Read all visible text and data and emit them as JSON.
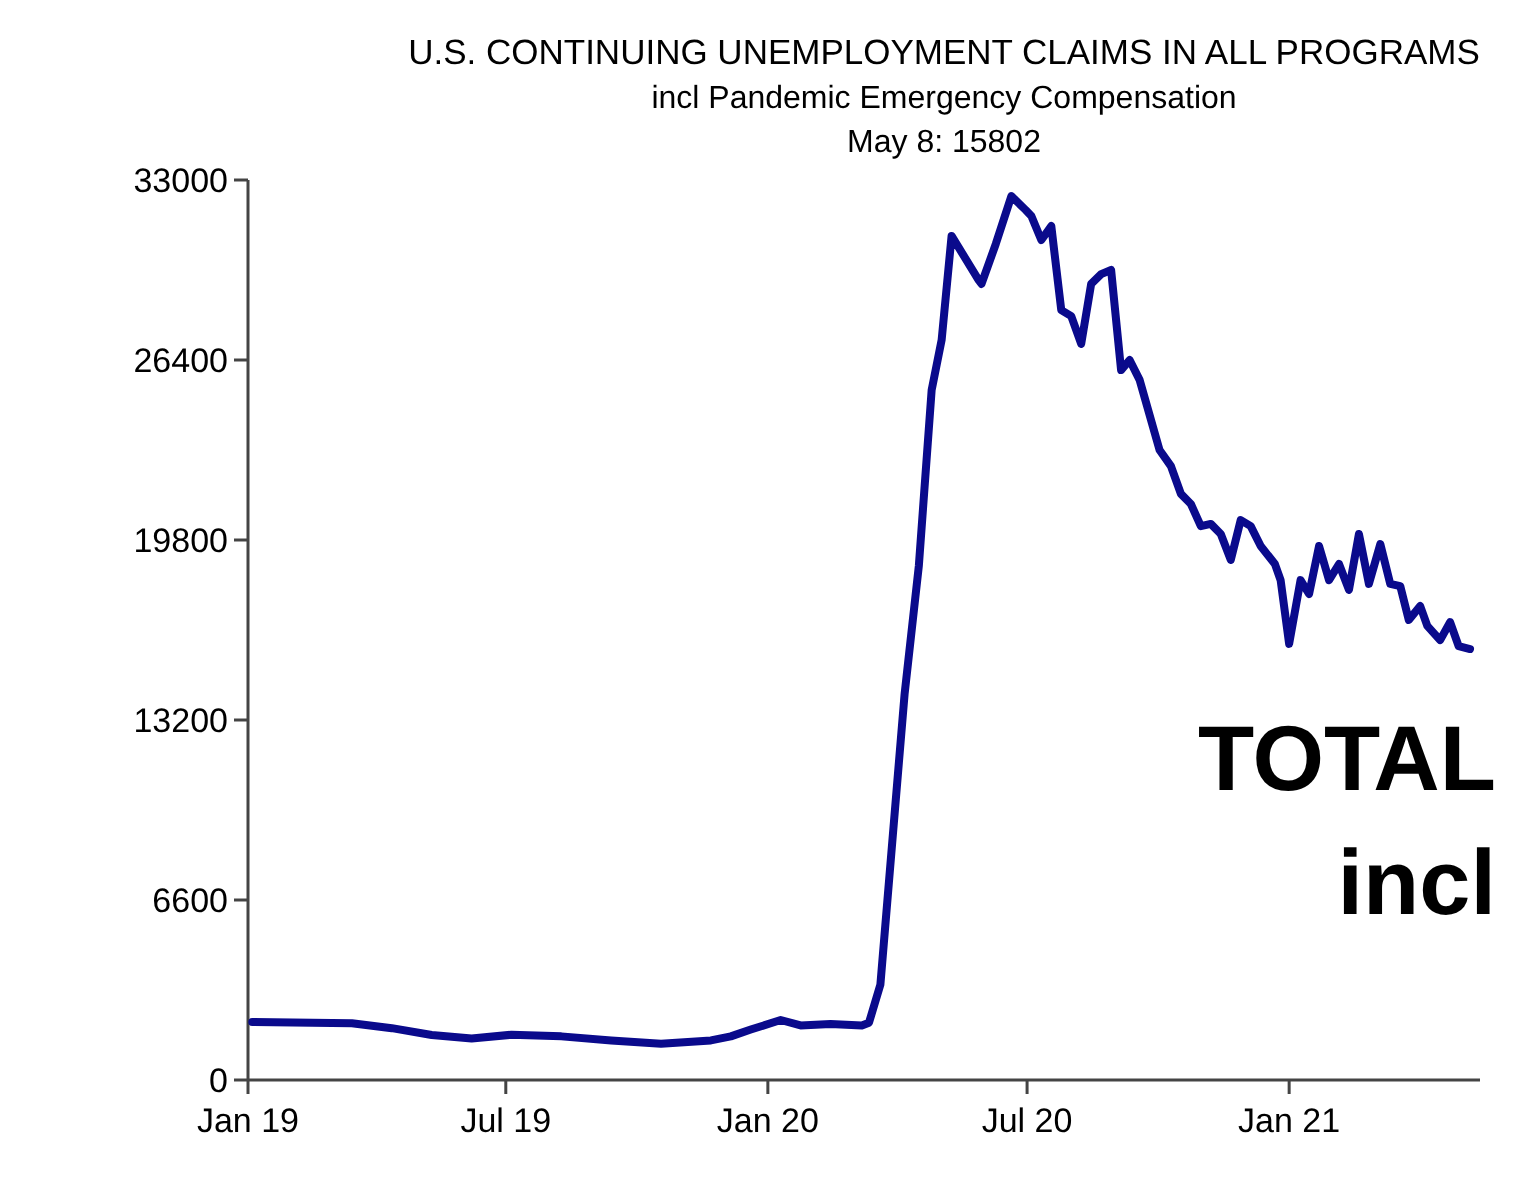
{
  "chart_data": {
    "type": "line",
    "title": "U.S. CONTINUING UNEMPLOYMENT CLAIMS IN ALL PROGRAMS",
    "subtitle": "incl Pandemic Emergency Compensation",
    "annotations": [
      "May 8: 15802",
      "TOTAL",
      "incl"
    ],
    "xlim": [
      "2019-01-01",
      "2021-05-15"
    ],
    "xticks": [
      {
        "value": "2019-01-01",
        "label": "Jan 19"
      },
      {
        "value": "2019-07-01",
        "label": "Jul 19"
      },
      {
        "value": "2020-01-01",
        "label": "Jan 20"
      },
      {
        "value": "2020-07-01",
        "label": "Jul 20"
      },
      {
        "value": "2021-01-01",
        "label": "Jan 21"
      }
    ],
    "ylim": [
      0,
      33000
    ],
    "yticks": [
      0,
      6600,
      13200,
      19800,
      26400,
      33000
    ],
    "grid": false,
    "marker": "none",
    "line_style": "solid",
    "x": [
      "2019-01-04",
      "2019-02-15",
      "2019-03-15",
      "2019-04-12",
      "2019-05-10",
      "2019-06-07",
      "2019-07-05",
      "2019-08-09",
      "2019-09-13",
      "2019-10-18",
      "2019-11-22",
      "2019-12-06",
      "2019-12-20",
      "2020-01-10",
      "2020-01-24",
      "2020-02-14",
      "2020-03-07",
      "2020-03-12",
      "2020-03-20",
      "2020-04-06",
      "2020-04-16",
      "2020-04-25",
      "2020-05-02",
      "2020-05-09",
      "2020-05-28",
      "2020-05-30",
      "2020-06-09",
      "2020-06-20",
      "2020-06-30",
      "2020-07-04",
      "2020-07-11",
      "2020-07-18",
      "2020-07-25",
      "2020-08-01",
      "2020-08-08",
      "2020-08-15",
      "2020-08-22",
      "2020-08-29",
      "2020-09-05",
      "2020-09-11",
      "2020-09-18",
      "2020-10-02",
      "2020-10-10",
      "2020-10-17",
      "2020-10-24",
      "2020-10-31",
      "2020-11-07",
      "2020-11-14",
      "2020-11-21",
      "2020-11-28",
      "2020-12-05",
      "2020-12-12",
      "2020-12-22",
      "2020-12-26",
      "2021-01-01",
      "2021-01-09",
      "2021-01-15",
      "2021-01-22",
      "2021-01-29",
      "2021-02-05",
      "2021-02-12",
      "2021-02-19",
      "2021-02-26",
      "2021-03-06",
      "2021-03-13",
      "2021-03-20",
      "2021-03-26",
      "2021-04-03",
      "2021-04-08",
      "2021-04-17",
      "2021-04-24",
      "2021-04-30",
      "2021-05-08"
    ],
    "series": [
      {
        "color": "#0a0a8c",
        "values": [
          2130,
          2100,
          2080,
          1900,
          1650,
          1520,
          1660,
          1600,
          1450,
          1330,
          1450,
          1600,
          1850,
          2200,
          2000,
          2050,
          2000,
          2100,
          3500,
          14150,
          18850,
          25300,
          27130,
          30950,
          29330,
          29190,
          30650,
          32410,
          31900,
          31680,
          30800,
          31310,
          28230,
          28010,
          26990,
          29190,
          29550,
          29700,
          26030,
          26400,
          25670,
          23100,
          22510,
          21490,
          21120,
          20310,
          20390,
          20020,
          19070,
          20530,
          20310,
          19580,
          18920,
          18330,
          15990,
          18330,
          17820,
          19580,
          18330,
          18920,
          17970,
          20020,
          18190,
          19650,
          18190,
          18110,
          16870,
          17380,
          16650,
          16130,
          16790,
          15910,
          15802
        ]
      }
    ]
  }
}
